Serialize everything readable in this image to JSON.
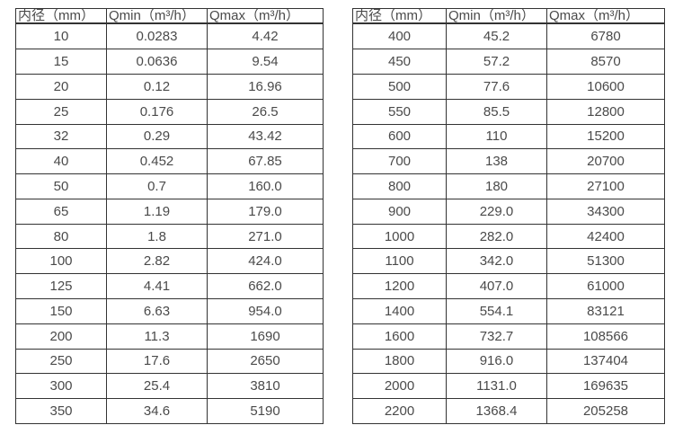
{
  "page": {
    "background_color": "#ffffff",
    "border_color": "#333333",
    "text_color": "#4a4a4a"
  },
  "chart_data": [
    {
      "type": "table",
      "title": "",
      "columns": [
        "内径（mm）",
        "Qmin（m³/h）",
        "Qmax（m³/h）"
      ],
      "rows": [
        [
          "10",
          "0.0283",
          "4.42"
        ],
        [
          "15",
          "0.0636",
          "9.54"
        ],
        [
          "20",
          "0.12",
          "16.96"
        ],
        [
          "25",
          "0.176",
          "26.5"
        ],
        [
          "32",
          "0.29",
          "43.42"
        ],
        [
          "40",
          "0.452",
          "67.85"
        ],
        [
          "50",
          "0.7",
          "160.0"
        ],
        [
          "65",
          "1.19",
          "179.0"
        ],
        [
          "80",
          "1.8",
          "271.0"
        ],
        [
          "100",
          "2.82",
          "424.0"
        ],
        [
          "125",
          "4.41",
          "662.0"
        ],
        [
          "150",
          "6.63",
          "954.0"
        ],
        [
          "200",
          "11.3",
          "1690"
        ],
        [
          "250",
          "17.6",
          "2650"
        ],
        [
          "300",
          "25.4",
          "3810"
        ],
        [
          "350",
          "34.6",
          "5190"
        ]
      ]
    },
    {
      "type": "table",
      "title": "",
      "columns": [
        "内径（mm）",
        "Qmin（m³/h）",
        "Qmax（m³/h）"
      ],
      "rows": [
        [
          "400",
          "45.2",
          "6780"
        ],
        [
          "450",
          "57.2",
          "8570"
        ],
        [
          "500",
          "77.6",
          "10600"
        ],
        [
          "550",
          "85.5",
          "12800"
        ],
        [
          "600",
          "110",
          "15200"
        ],
        [
          "700",
          "138",
          "20700"
        ],
        [
          "800",
          "180",
          "27100"
        ],
        [
          "900",
          "229.0",
          "34300"
        ],
        [
          "1000",
          "282.0",
          "42400"
        ],
        [
          "1100",
          "342.0",
          "51300"
        ],
        [
          "1200",
          "407.0",
          "61000"
        ],
        [
          "1400",
          "554.1",
          "83121"
        ],
        [
          "1600",
          "732.7",
          "108566"
        ],
        [
          "1800",
          "916.0",
          "137404"
        ],
        [
          "2000",
          "1131.0",
          "169635"
        ],
        [
          "2200",
          "1368.4",
          "205258"
        ]
      ]
    }
  ]
}
